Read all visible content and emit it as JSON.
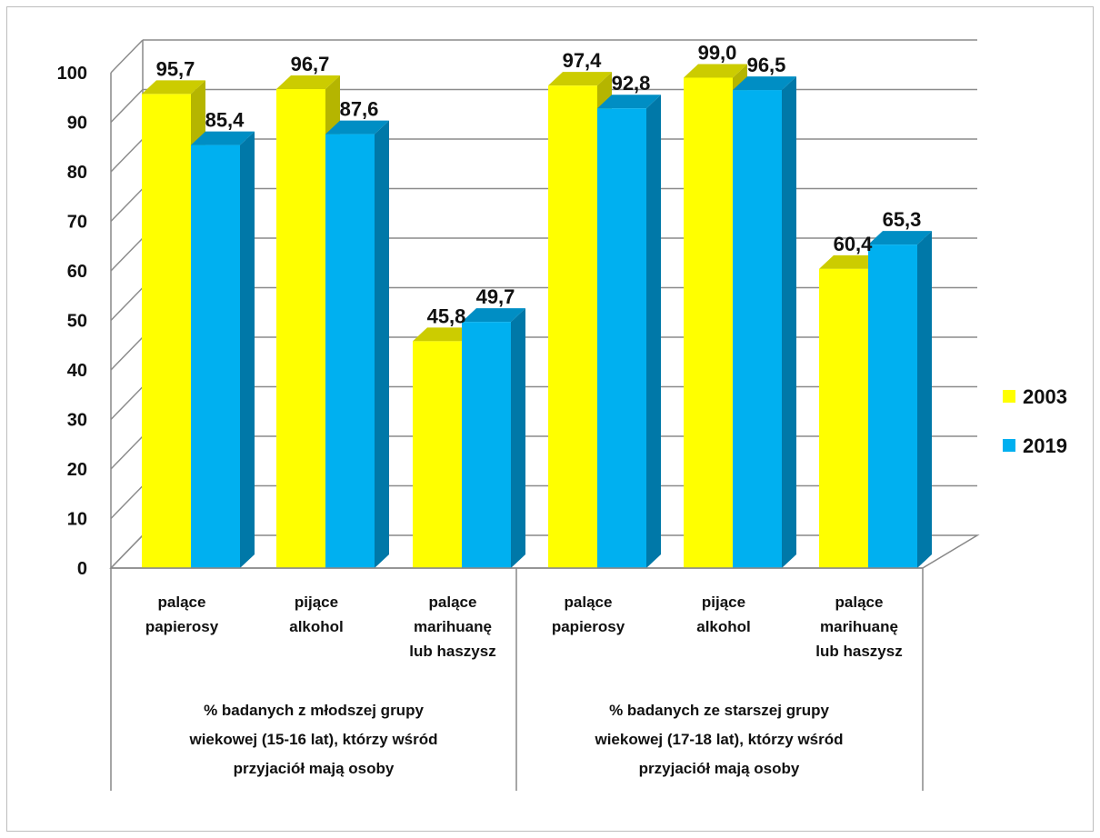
{
  "chart_data": {
    "type": "bar",
    "ylim": [
      0,
      100
    ],
    "yticks": [
      "0",
      "10",
      "20",
      "30",
      "40",
      "50",
      "60",
      "70",
      "80",
      "90",
      "100"
    ],
    "categories": [
      [
        "palące",
        "papierosy"
      ],
      [
        "pijące",
        "alkohol"
      ],
      [
        "palące",
        "marihuanę",
        "lub haszysz"
      ],
      [
        "palące",
        "papierosy"
      ],
      [
        "pijące",
        "alkohol"
      ],
      [
        "palące",
        "marihuanę",
        "lub haszysz"
      ]
    ],
    "groups": [
      [
        "% badanych z młodszej grupy",
        "wiekowej (15-16 lat), którzy wśród",
        "przyjaciół mają osoby"
      ],
      [
        "% badanych ze starszej grupy",
        "wiekowej (17-18 lat), którzy wśród",
        "przyjaciół mają osoby"
      ]
    ],
    "series": [
      {
        "name": "2003",
        "values": [
          95.7,
          96.7,
          45.8,
          97.4,
          99.0,
          60.4
        ],
        "labels": [
          "95,7",
          "96,7",
          "45,8",
          "97,4",
          "99,0",
          "60,4"
        ],
        "color": "#FFFF00",
        "top_color": "#CCCC00",
        "side_color": "#B5B500"
      },
      {
        "name": "2019",
        "values": [
          85.4,
          87.6,
          49.7,
          92.8,
          96.5,
          65.3
        ],
        "labels": [
          "85,4",
          "87,6",
          "49,7",
          "92,8",
          "96,5",
          "65,3"
        ],
        "color": "#00B0F0",
        "top_color": "#008EC4",
        "side_color": "#0078A8"
      }
    ],
    "legend_position": "right",
    "grid": true
  }
}
